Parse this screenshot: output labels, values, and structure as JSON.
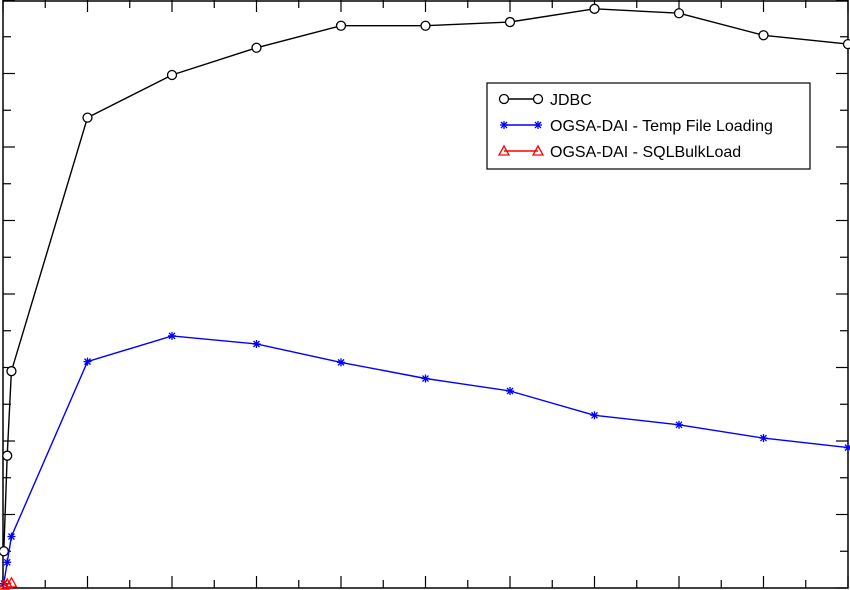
{
  "chart_data": {
    "type": "line",
    "title": "",
    "xlabel": "",
    "ylabel": "",
    "grid": false,
    "legend_position": "top-right",
    "xlim": [
      0,
      1000
    ],
    "ylim": [
      0,
      8000
    ],
    "x_ticks": [
      0,
      50,
      100,
      150,
      200,
      250,
      300,
      350,
      400,
      450,
      500,
      550,
      600,
      650,
      700,
      750,
      800,
      850,
      900,
      950,
      1000
    ],
    "y_ticks": [
      0,
      500,
      1000,
      1500,
      2000,
      2500,
      3000,
      3500,
      4000,
      4500,
      5000,
      5500,
      6000,
      6500,
      7000,
      7500,
      8000
    ],
    "series": [
      {
        "name": "JDBC",
        "color": "#000000",
        "marker": "circle",
        "x": [
          1,
          5,
          10,
          100,
          200,
          300,
          400,
          500,
          600,
          700,
          800,
          900,
          1000
        ],
        "y": [
          500,
          1800,
          2950,
          6400,
          6980,
          7350,
          7650,
          7650,
          7700,
          7880,
          7820,
          7520,
          7400
        ]
      },
      {
        "name": "OGSA-DAI - Temp File Loading",
        "color": "#0000ff",
        "marker": "star",
        "x": [
          1,
          5,
          10,
          100,
          200,
          300,
          400,
          500,
          600,
          700,
          800,
          900,
          1000
        ],
        "y": [
          60,
          350,
          700,
          3080,
          3430,
          3320,
          3070,
          2850,
          2680,
          2350,
          2220,
          2040,
          1910
        ]
      },
      {
        "name": "OGSA-DAI - SQLBulkLoad",
        "color": "#ff0000",
        "marker": "triangle",
        "x": [
          1,
          5,
          10
        ],
        "y": [
          40,
          55,
          70
        ]
      }
    ]
  }
}
